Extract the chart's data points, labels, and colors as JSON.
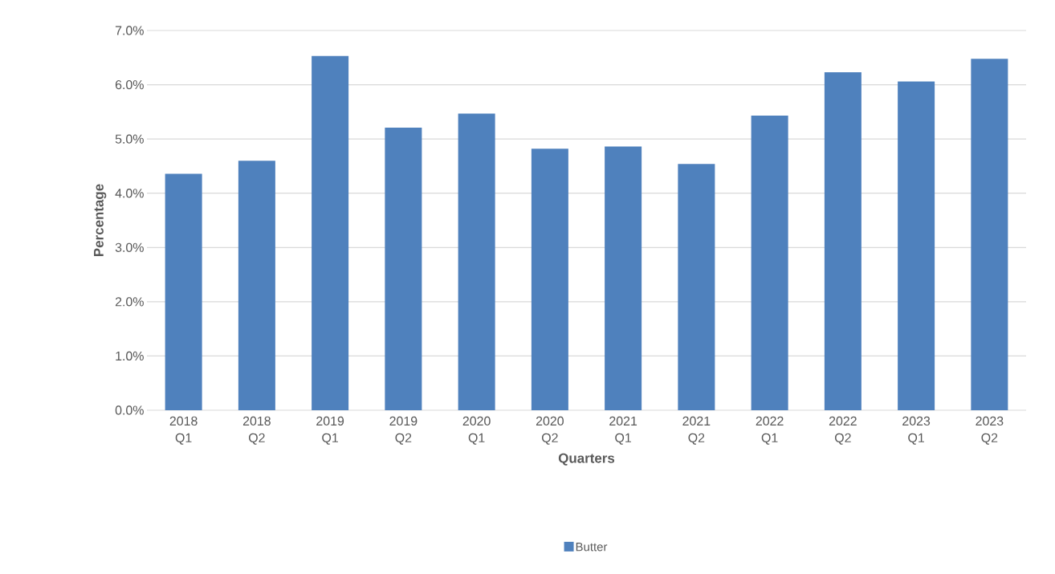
{
  "chart_data": {
    "type": "bar",
    "xlabel": "Quarters",
    "ylabel": "Percentage",
    "categories": [
      "2018 Q1",
      "2018 Q2",
      "2019 Q1",
      "2019 Q2",
      "2020 Q1",
      "2020 Q2",
      "2021 Q1",
      "2021 Q2",
      "2022 Q1",
      "2022 Q2",
      "2023 Q1",
      "2023 Q2"
    ],
    "series": [
      {
        "name": "Butter",
        "color": "#4f81bd",
        "values": [
          4.36,
          4.6,
          6.53,
          5.21,
          5.47,
          4.82,
          4.86,
          4.54,
          5.43,
          6.23,
          6.06,
          6.48
        ]
      }
    ],
    "ylim": [
      0,
      7
    ],
    "yticks": [
      {
        "value": 0,
        "label": "0.0%"
      },
      {
        "value": 1,
        "label": "1.0%"
      },
      {
        "value": 2,
        "label": "2.0%"
      },
      {
        "value": 3,
        "label": "3.0%"
      },
      {
        "value": 4,
        "label": "4.0%"
      },
      {
        "value": 5,
        "label": "5.0%"
      },
      {
        "value": 6,
        "label": "6.0%"
      },
      {
        "value": 7,
        "label": "7.0%"
      }
    ],
    "grid": "y",
    "legend": "bottom"
  }
}
